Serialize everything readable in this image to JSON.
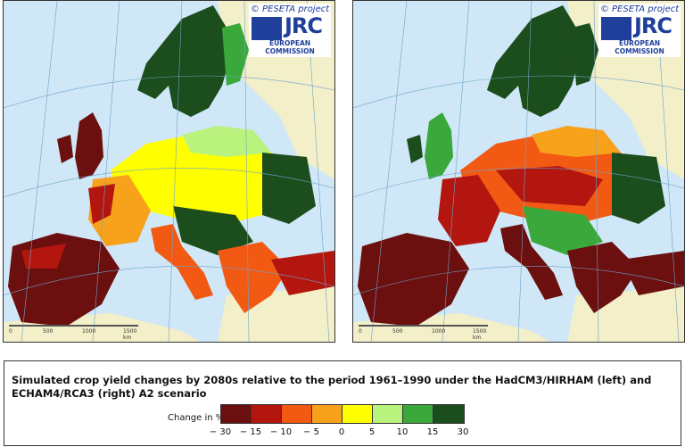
{
  "maps": [
    {
      "id": "left",
      "credit": {
        "project": "© PESETA project",
        "logo": "JRC",
        "org": "EUROPEAN COMMISSION"
      },
      "scale": [
        "0",
        "500",
        "1000",
        "1500 km"
      ]
    },
    {
      "id": "right",
      "credit": {
        "project": "© PESETA project",
        "logo": "JRC",
        "org": "EUROPEAN COMMISSION"
      },
      "scale": [
        "0",
        "500",
        "1000",
        "1500 km"
      ]
    }
  ],
  "legend": {
    "title": "Simulated crop yield changes by 2080s relative to the period 1961–1990 under the HadCM3/HIRHAM (left) and ECHAM4/RCA3 (right) A2 scenario",
    "caption": "Change in %",
    "colors": [
      "#6b0f0f",
      "#b3150f",
      "#f25a14",
      "#f8a21b",
      "#ffff00",
      "#b9f27c",
      "#3aa83a",
      "#1c4d1c"
    ],
    "ticks": [
      "− 30",
      "− 15",
      "− 10",
      "− 5",
      "0",
      "5",
      "10",
      "15",
      "30"
    ]
  },
  "colors": {
    "sea": "#cfe7f7",
    "non_study_land": "#f3efc9",
    "border": "#777777",
    "graticule": "#6fa4c9"
  }
}
